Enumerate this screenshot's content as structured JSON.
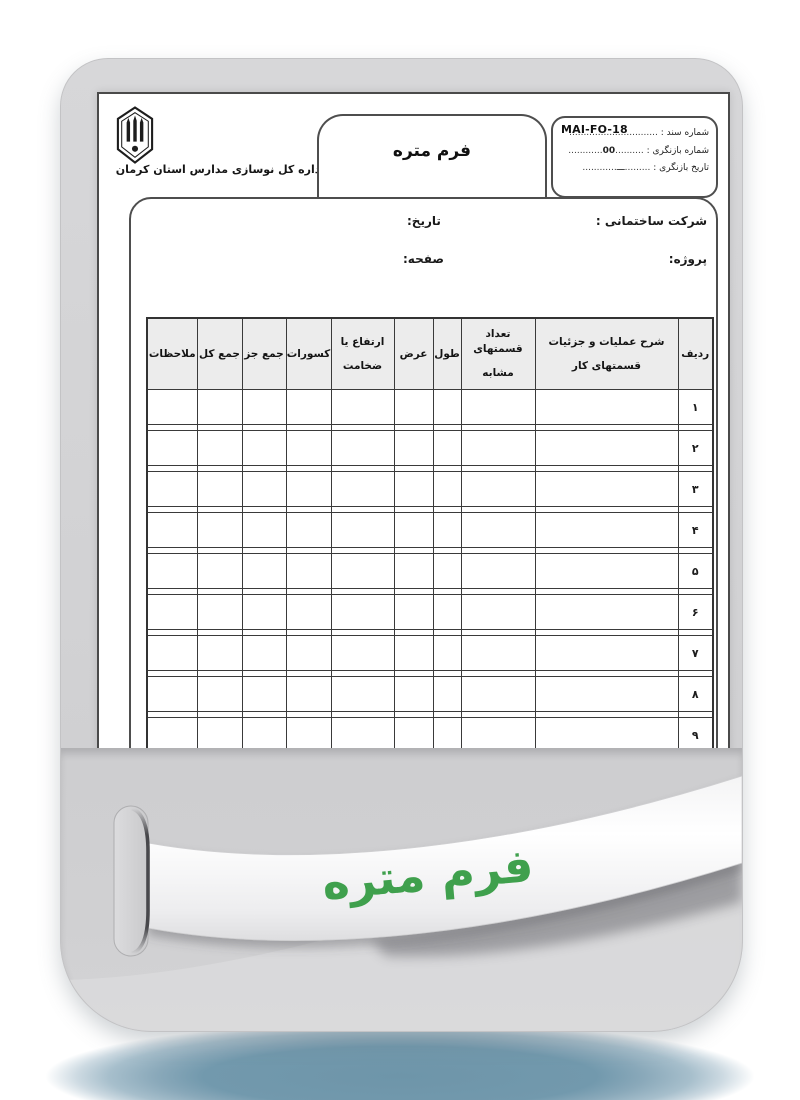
{
  "org": {
    "name": "اداره کل نوسازی مدارس استان کرمان",
    "logo": "school-renovation-emblem"
  },
  "header": {
    "title": "فرم متره",
    "code": "MAI-FO-18",
    "doc_number": {
      "label": "شماره سند :",
      "dots": "..............................."
    },
    "revision_number": {
      "label": "شماره بازنگری :",
      "dots_before": "..........",
      "value": "00",
      "dots_after": "............"
    },
    "revision_date": {
      "label": "تاریخ بازنگری :",
      "dots_before": ".........",
      "value": "ـــ",
      "dots_after": "............"
    }
  },
  "form": {
    "company_label": "شرکت ساختمانی :",
    "project_label": "پروژه:",
    "date_label": "تاریخ:",
    "page_label": "صفحه:"
  },
  "table": {
    "headers": [
      {
        "label": "ردیف"
      },
      {
        "line1": "شرح عملیات و جزئیات",
        "line2": "قسمتهای کار"
      },
      {
        "line1": "تعداد قسمتهای",
        "line2": "مشابه"
      },
      {
        "label": "طول"
      },
      {
        "label": "عرض"
      },
      {
        "line1": "ارتفاع یا",
        "line2": "ضخامت"
      },
      {
        "label": "کسورات"
      },
      {
        "label": "جمع جز"
      },
      {
        "label": "جمع کل"
      },
      {
        "label": "ملاحظات"
      }
    ],
    "row_numbers": [
      "۱",
      "۲",
      "۳",
      "۴",
      "۵",
      "۶",
      "۷",
      "۸",
      "۹"
    ]
  },
  "ribbon": {
    "title": "فرم متره"
  },
  "colors": {
    "accent_green": "#3fa04d",
    "folder_gray": "#d2d2d4",
    "pocket_gray": "#cfcfd1",
    "table_border": "#3a3a3a",
    "header_cell_bg": "#ececec",
    "base_shadow_blue": "#6e95a9"
  }
}
